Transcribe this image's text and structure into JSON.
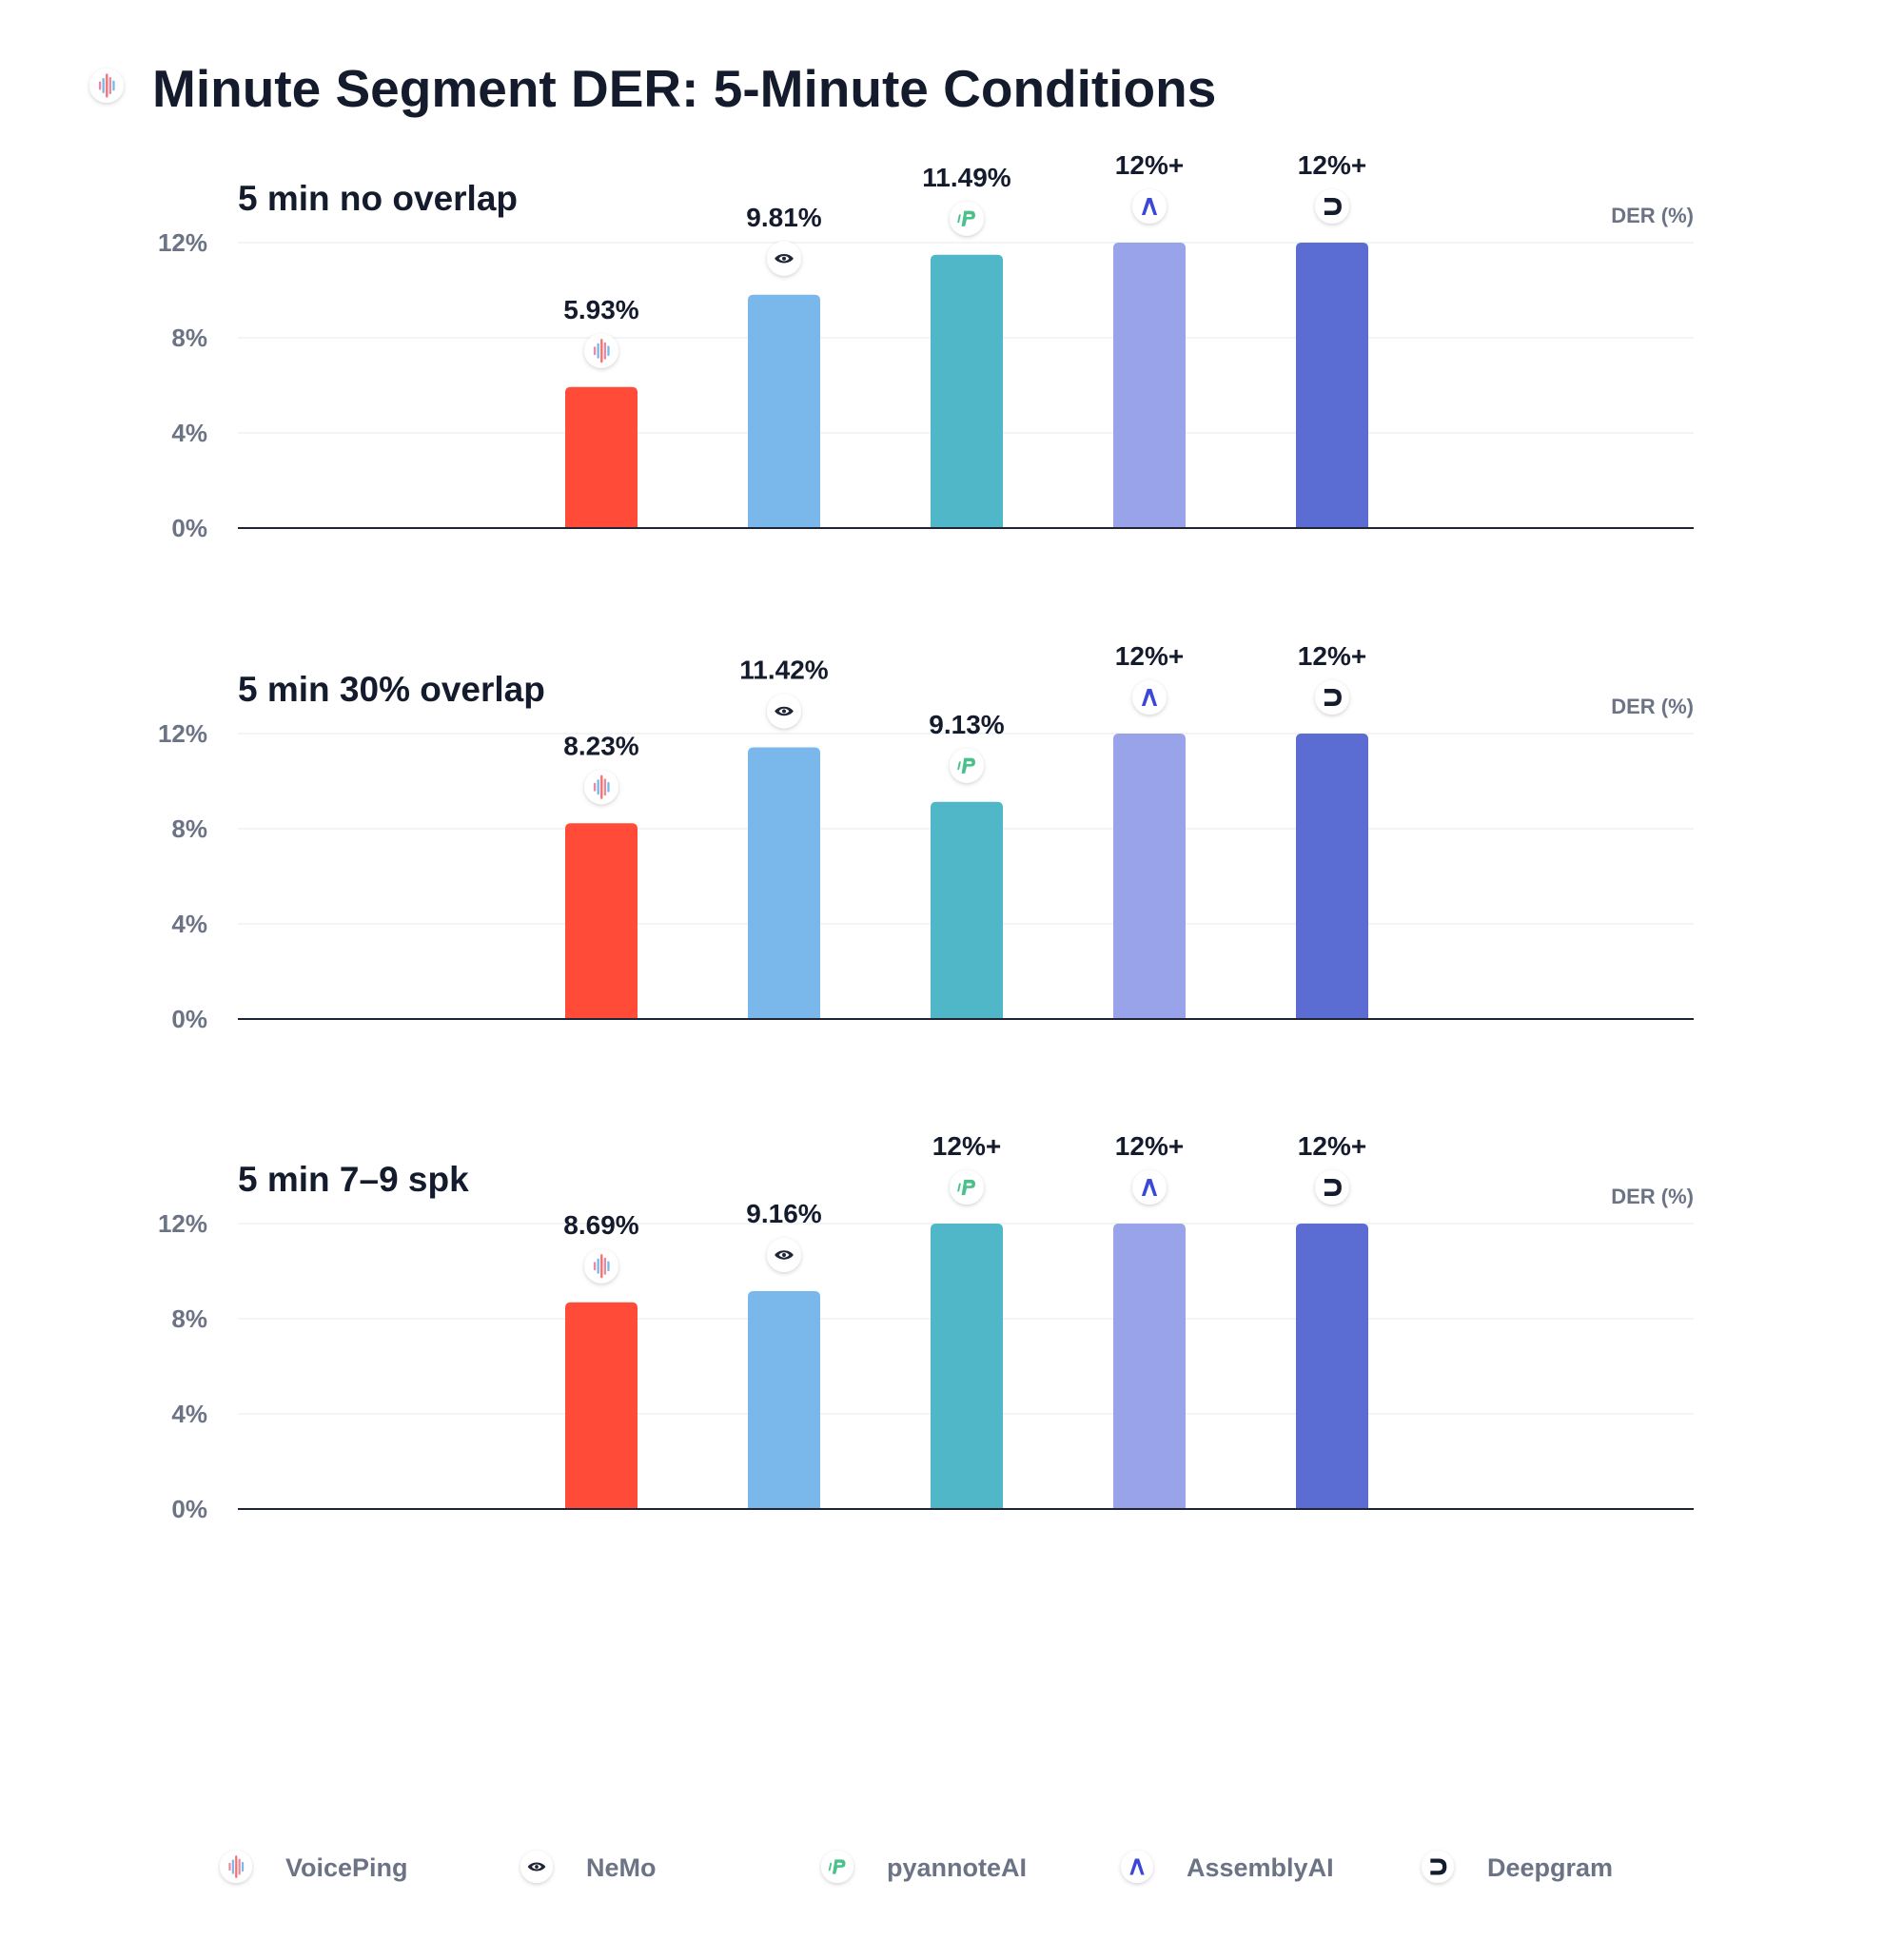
{
  "title": "Minute Segment DER: 5-Minute Conditions",
  "title_icon": "voiceping-icon",
  "chart_data": {
    "type": "bar",
    "ylim": [
      0,
      12
    ],
    "yticks": [
      "0%",
      "4%",
      "8%",
      "12%"
    ],
    "ytick_values": [
      0,
      4,
      8,
      12
    ],
    "ylabel": "DER (%)",
    "cap": 12,
    "grid": true,
    "legend_position": "bottom",
    "categories": [
      "VoicePing",
      "NeMo",
      "pyannoteAI",
      "AssemblyAI",
      "Deepgram"
    ],
    "colors": [
      "#ff4b37",
      "#7ab8ec",
      "#50b7c9",
      "#99a3e9",
      "#5b6cd3"
    ],
    "icons": [
      "voiceping-icon",
      "nvidia-icon",
      "pyannote-icon",
      "assemblyai-icon",
      "deepgram-icon"
    ],
    "panels": [
      {
        "title": "5 min no overlap",
        "values": [
          5.93,
          9.81,
          11.49,
          12,
          12
        ],
        "labels": [
          "5.93%",
          "9.81%",
          "11.49%",
          "12%+",
          "12%+"
        ]
      },
      {
        "title": "5 min 30% overlap",
        "values": [
          8.23,
          11.42,
          9.13,
          12,
          12
        ],
        "labels": [
          "8.23%",
          "11.42%",
          "9.13%",
          "12%+",
          "12%+"
        ]
      },
      {
        "title": "5 min 7–9 spk",
        "values": [
          8.69,
          9.16,
          12,
          12,
          12
        ],
        "labels": [
          "8.69%",
          "9.16%",
          "12%+",
          "12%+",
          "12%+"
        ]
      }
    ]
  }
}
